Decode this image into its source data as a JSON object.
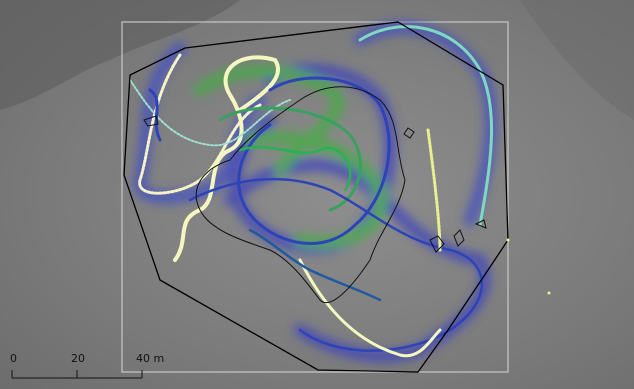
{
  "scale_bar": {
    "labels": [
      "0",
      "20",
      "40 m"
    ]
  }
}
